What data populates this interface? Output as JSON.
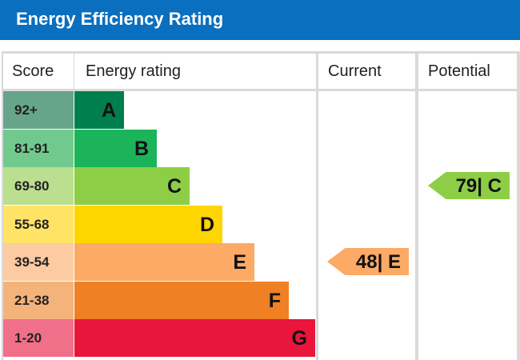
{
  "header": {
    "title": "Energy Efficiency Rating"
  },
  "columns": {
    "score": "Score",
    "rating": "Energy rating",
    "current": "Current",
    "potential": "Potential"
  },
  "chart_data": {
    "type": "table",
    "bands": [
      {
        "letter": "A",
        "range": "92+",
        "color": "#007f4e",
        "score_color": "#66a58a"
      },
      {
        "letter": "B",
        "range": "81-91",
        "color": "#1cb45a",
        "score_color": "#72c98e"
      },
      {
        "letter": "C",
        "range": "69-80",
        "color": "#8dce46",
        "score_color": "#badf8f"
      },
      {
        "letter": "D",
        "range": "55-68",
        "color": "#ffd500",
        "score_color": "#ffe366"
      },
      {
        "letter": "E",
        "range": "39-54",
        "color": "#fcaa65",
        "score_color": "#fdcba1"
      },
      {
        "letter": "F",
        "range": "21-38",
        "color": "#ef8023",
        "score_color": "#f5b37c"
      },
      {
        "letter": "G",
        "range": "1-20",
        "color": "#e9153b",
        "score_color": "#f07089"
      }
    ],
    "current": {
      "value": 48,
      "band": "E",
      "label": "48| E"
    },
    "potential": {
      "value": 79,
      "band": "C",
      "label": "79| C"
    }
  }
}
